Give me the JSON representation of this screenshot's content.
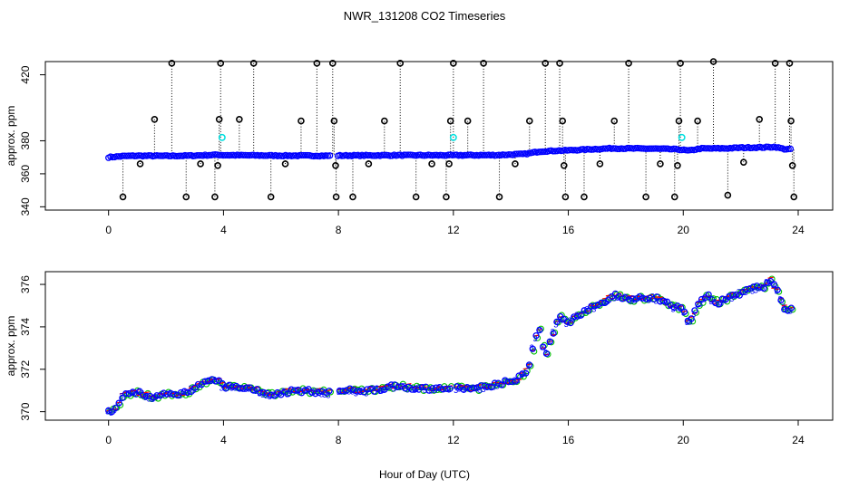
{
  "title": "NWR_131208  CO2 Timeseries",
  "xlabel": "Hour of Day (UTC)",
  "colors": {
    "axis": "#000000",
    "flask": "#000000",
    "main_series": "#0000ff",
    "cyan_points": "#00e0e0",
    "green_series": "#00c000",
    "red_series": "#ff0000",
    "series3": "#0000ff"
  },
  "chart_data": [
    {
      "type": "scatter",
      "panel": "top",
      "ylabel": "approx. ppm",
      "xlim": [
        -2.2,
        25.2
      ],
      "ylim": [
        338,
        428
      ],
      "xticks": [
        0,
        4,
        8,
        12,
        16,
        20,
        24
      ],
      "yticks": [
        340,
        360,
        380,
        420
      ],
      "gap_at": 7.85,
      "main_level": [
        {
          "x": 0.0,
          "y": 370.0
        },
        {
          "x": 0.5,
          "y": 370.7
        },
        {
          "x": 1.0,
          "y": 370.9
        },
        {
          "x": 2.0,
          "y": 370.8
        },
        {
          "x": 3.0,
          "y": 371.0
        },
        {
          "x": 3.8,
          "y": 371.5
        },
        {
          "x": 4.0,
          "y": 371.3
        },
        {
          "x": 6.0,
          "y": 371.0
        },
        {
          "x": 7.8,
          "y": 370.9
        },
        {
          "x": 8.0,
          "y": 371.0
        },
        {
          "x": 10.0,
          "y": 371.2
        },
        {
          "x": 12.0,
          "y": 371.2
        },
        {
          "x": 13.5,
          "y": 371.3
        },
        {
          "x": 14.5,
          "y": 372.0
        },
        {
          "x": 15.0,
          "y": 373.5
        },
        {
          "x": 15.6,
          "y": 374.0
        },
        {
          "x": 16.0,
          "y": 374.2
        },
        {
          "x": 17.5,
          "y": 375.4
        },
        {
          "x": 19.0,
          "y": 375.2
        },
        {
          "x": 19.8,
          "y": 374.8
        },
        {
          "x": 20.2,
          "y": 374.0
        },
        {
          "x": 20.6,
          "y": 375.3
        },
        {
          "x": 21.5,
          "y": 375.4
        },
        {
          "x": 22.0,
          "y": 375.8
        },
        {
          "x": 22.8,
          "y": 376.0
        },
        {
          "x": 23.2,
          "y": 376.3
        },
        {
          "x": 23.5,
          "y": 375.0
        },
        {
          "x": 23.8,
          "y": 374.8
        }
      ],
      "flask_outliers": [
        {
          "x": 0.5,
          "y": 346
        },
        {
          "x": 1.1,
          "y": 366
        },
        {
          "x": 1.6,
          "y": 393
        },
        {
          "x": 2.2,
          "y": 427
        },
        {
          "x": 2.7,
          "y": 346
        },
        {
          "x": 3.2,
          "y": 366
        },
        {
          "x": 3.7,
          "y": 346
        },
        {
          "x": 3.8,
          "y": 365
        },
        {
          "x": 3.85,
          "y": 393
        },
        {
          "x": 3.9,
          "y": 427
        },
        {
          "x": 4.55,
          "y": 393
        },
        {
          "x": 5.05,
          "y": 427
        },
        {
          "x": 5.65,
          "y": 346
        },
        {
          "x": 6.15,
          "y": 366
        },
        {
          "x": 6.7,
          "y": 392
        },
        {
          "x": 7.25,
          "y": 427
        },
        {
          "x": 7.8,
          "y": 427
        },
        {
          "x": 7.85,
          "y": 392
        },
        {
          "x": 7.9,
          "y": 365
        },
        {
          "x": 7.92,
          "y": 346
        },
        {
          "x": 8.5,
          "y": 346
        },
        {
          "x": 9.05,
          "y": 366
        },
        {
          "x": 9.6,
          "y": 392
        },
        {
          "x": 10.15,
          "y": 427
        },
        {
          "x": 10.7,
          "y": 346
        },
        {
          "x": 11.25,
          "y": 366
        },
        {
          "x": 11.75,
          "y": 346
        },
        {
          "x": 11.85,
          "y": 366
        },
        {
          "x": 11.9,
          "y": 392
        },
        {
          "x": 12.0,
          "y": 427
        },
        {
          "x": 12.5,
          "y": 392
        },
        {
          "x": 13.05,
          "y": 427
        },
        {
          "x": 13.6,
          "y": 346
        },
        {
          "x": 14.15,
          "y": 366
        },
        {
          "x": 14.65,
          "y": 392
        },
        {
          "x": 15.2,
          "y": 427
        },
        {
          "x": 15.7,
          "y": 427
        },
        {
          "x": 15.8,
          "y": 392
        },
        {
          "x": 15.85,
          "y": 365
        },
        {
          "x": 15.9,
          "y": 346
        },
        {
          "x": 16.55,
          "y": 346
        },
        {
          "x": 17.1,
          "y": 366
        },
        {
          "x": 17.6,
          "y": 392
        },
        {
          "x": 18.1,
          "y": 427
        },
        {
          "x": 18.7,
          "y": 346
        },
        {
          "x": 19.2,
          "y": 366
        },
        {
          "x": 19.7,
          "y": 346
        },
        {
          "x": 19.8,
          "y": 365
        },
        {
          "x": 19.85,
          "y": 392
        },
        {
          "x": 19.9,
          "y": 427
        },
        {
          "x": 20.5,
          "y": 392
        },
        {
          "x": 21.05,
          "y": 428
        },
        {
          "x": 21.55,
          "y": 347
        },
        {
          "x": 22.1,
          "y": 367
        },
        {
          "x": 22.65,
          "y": 393
        },
        {
          "x": 23.2,
          "y": 427
        },
        {
          "x": 23.7,
          "y": 427
        },
        {
          "x": 23.75,
          "y": 392
        },
        {
          "x": 23.8,
          "y": 365
        },
        {
          "x": 23.85,
          "y": 346
        }
      ],
      "cyan_points": [
        {
          "x": 3.95,
          "y": 382
        },
        {
          "x": 12.0,
          "y": 382
        },
        {
          "x": 19.95,
          "y": 382
        }
      ]
    },
    {
      "type": "scatter",
      "panel": "bottom",
      "ylabel": "approx. ppm",
      "xlim": [
        -2.2,
        25.2
      ],
      "ylim": [
        369.6,
        376.6
      ],
      "xticks": [
        0,
        4,
        8,
        12,
        16,
        20,
        24
      ],
      "yticks": [
        370,
        372,
        374,
        376
      ],
      "gap_at": 7.85,
      "series_markers": [
        "circle",
        "circle",
        "3",
        "dash"
      ],
      "level": [
        {
          "x": 0.0,
          "y": 370.0
        },
        {
          "x": 0.3,
          "y": 370.2
        },
        {
          "x": 0.5,
          "y": 370.8
        },
        {
          "x": 1.0,
          "y": 370.9
        },
        {
          "x": 1.5,
          "y": 370.7
        },
        {
          "x": 2.0,
          "y": 370.8
        },
        {
          "x": 2.7,
          "y": 370.9
        },
        {
          "x": 3.2,
          "y": 371.3
        },
        {
          "x": 3.8,
          "y": 371.5
        },
        {
          "x": 4.0,
          "y": 371.2
        },
        {
          "x": 5.0,
          "y": 371.1
        },
        {
          "x": 5.7,
          "y": 370.8
        },
        {
          "x": 6.5,
          "y": 371.0
        },
        {
          "x": 7.8,
          "y": 370.9
        },
        {
          "x": 8.0,
          "y": 371.0
        },
        {
          "x": 9.0,
          "y": 371.0
        },
        {
          "x": 10.0,
          "y": 371.2
        },
        {
          "x": 11.0,
          "y": 371.1
        },
        {
          "x": 12.0,
          "y": 371.1
        },
        {
          "x": 12.8,
          "y": 371.1
        },
        {
          "x": 13.5,
          "y": 371.3
        },
        {
          "x": 14.2,
          "y": 371.5
        },
        {
          "x": 14.6,
          "y": 372.0
        },
        {
          "x": 14.85,
          "y": 373.5
        },
        {
          "x": 15.0,
          "y": 373.8
        },
        {
          "x": 15.2,
          "y": 372.6
        },
        {
          "x": 15.55,
          "y": 374.0
        },
        {
          "x": 15.7,
          "y": 374.5
        },
        {
          "x": 16.0,
          "y": 374.2
        },
        {
          "x": 16.6,
          "y": 374.8
        },
        {
          "x": 17.0,
          "y": 375.0
        },
        {
          "x": 17.6,
          "y": 375.5
        },
        {
          "x": 18.2,
          "y": 375.3
        },
        {
          "x": 19.0,
          "y": 375.4
        },
        {
          "x": 19.6,
          "y": 375.0
        },
        {
          "x": 20.0,
          "y": 374.8
        },
        {
          "x": 20.2,
          "y": 374.1
        },
        {
          "x": 20.5,
          "y": 375.0
        },
        {
          "x": 20.8,
          "y": 375.5
        },
        {
          "x": 21.2,
          "y": 375.1
        },
        {
          "x": 21.6,
          "y": 375.4
        },
        {
          "x": 22.0,
          "y": 375.6
        },
        {
          "x": 22.4,
          "y": 375.8
        },
        {
          "x": 22.8,
          "y": 375.9
        },
        {
          "x": 23.0,
          "y": 376.3
        },
        {
          "x": 23.3,
          "y": 375.6
        },
        {
          "x": 23.5,
          "y": 374.9
        },
        {
          "x": 23.8,
          "y": 374.8
        }
      ]
    }
  ]
}
